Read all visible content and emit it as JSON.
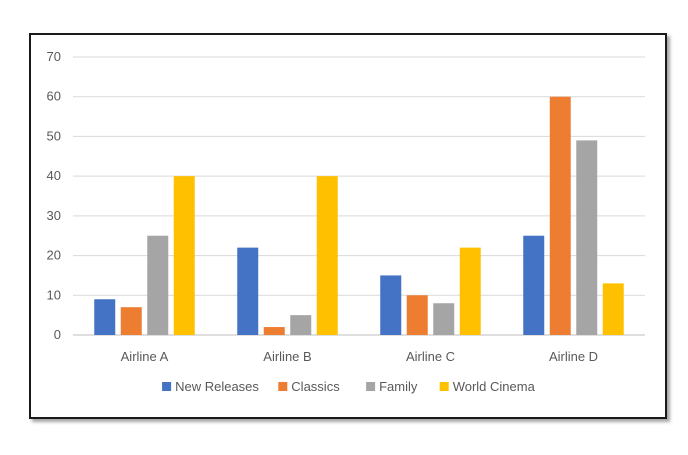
{
  "chart_data": {
    "type": "bar",
    "title": "",
    "xlabel": "",
    "ylabel": "",
    "categories": [
      "Airline A",
      "Airline B",
      "Airline C",
      "Airline D"
    ],
    "ylim": [
      0,
      70
    ],
    "yticks": [
      0,
      10,
      20,
      30,
      40,
      50,
      60,
      70
    ],
    "grid": true,
    "legend_position": "bottom",
    "series": [
      {
        "name": "New Releases",
        "color": "#4472C4",
        "values": [
          9,
          22,
          15,
          25
        ]
      },
      {
        "name": "Classics",
        "color": "#ED7D31",
        "values": [
          7,
          2,
          10,
          60
        ]
      },
      {
        "name": "Family",
        "color": "#A5A5A5",
        "values": [
          25,
          5,
          8,
          49
        ]
      },
      {
        "name": "World Cinema",
        "color": "#FFC000",
        "values": [
          40,
          40,
          22,
          13
        ]
      }
    ]
  }
}
